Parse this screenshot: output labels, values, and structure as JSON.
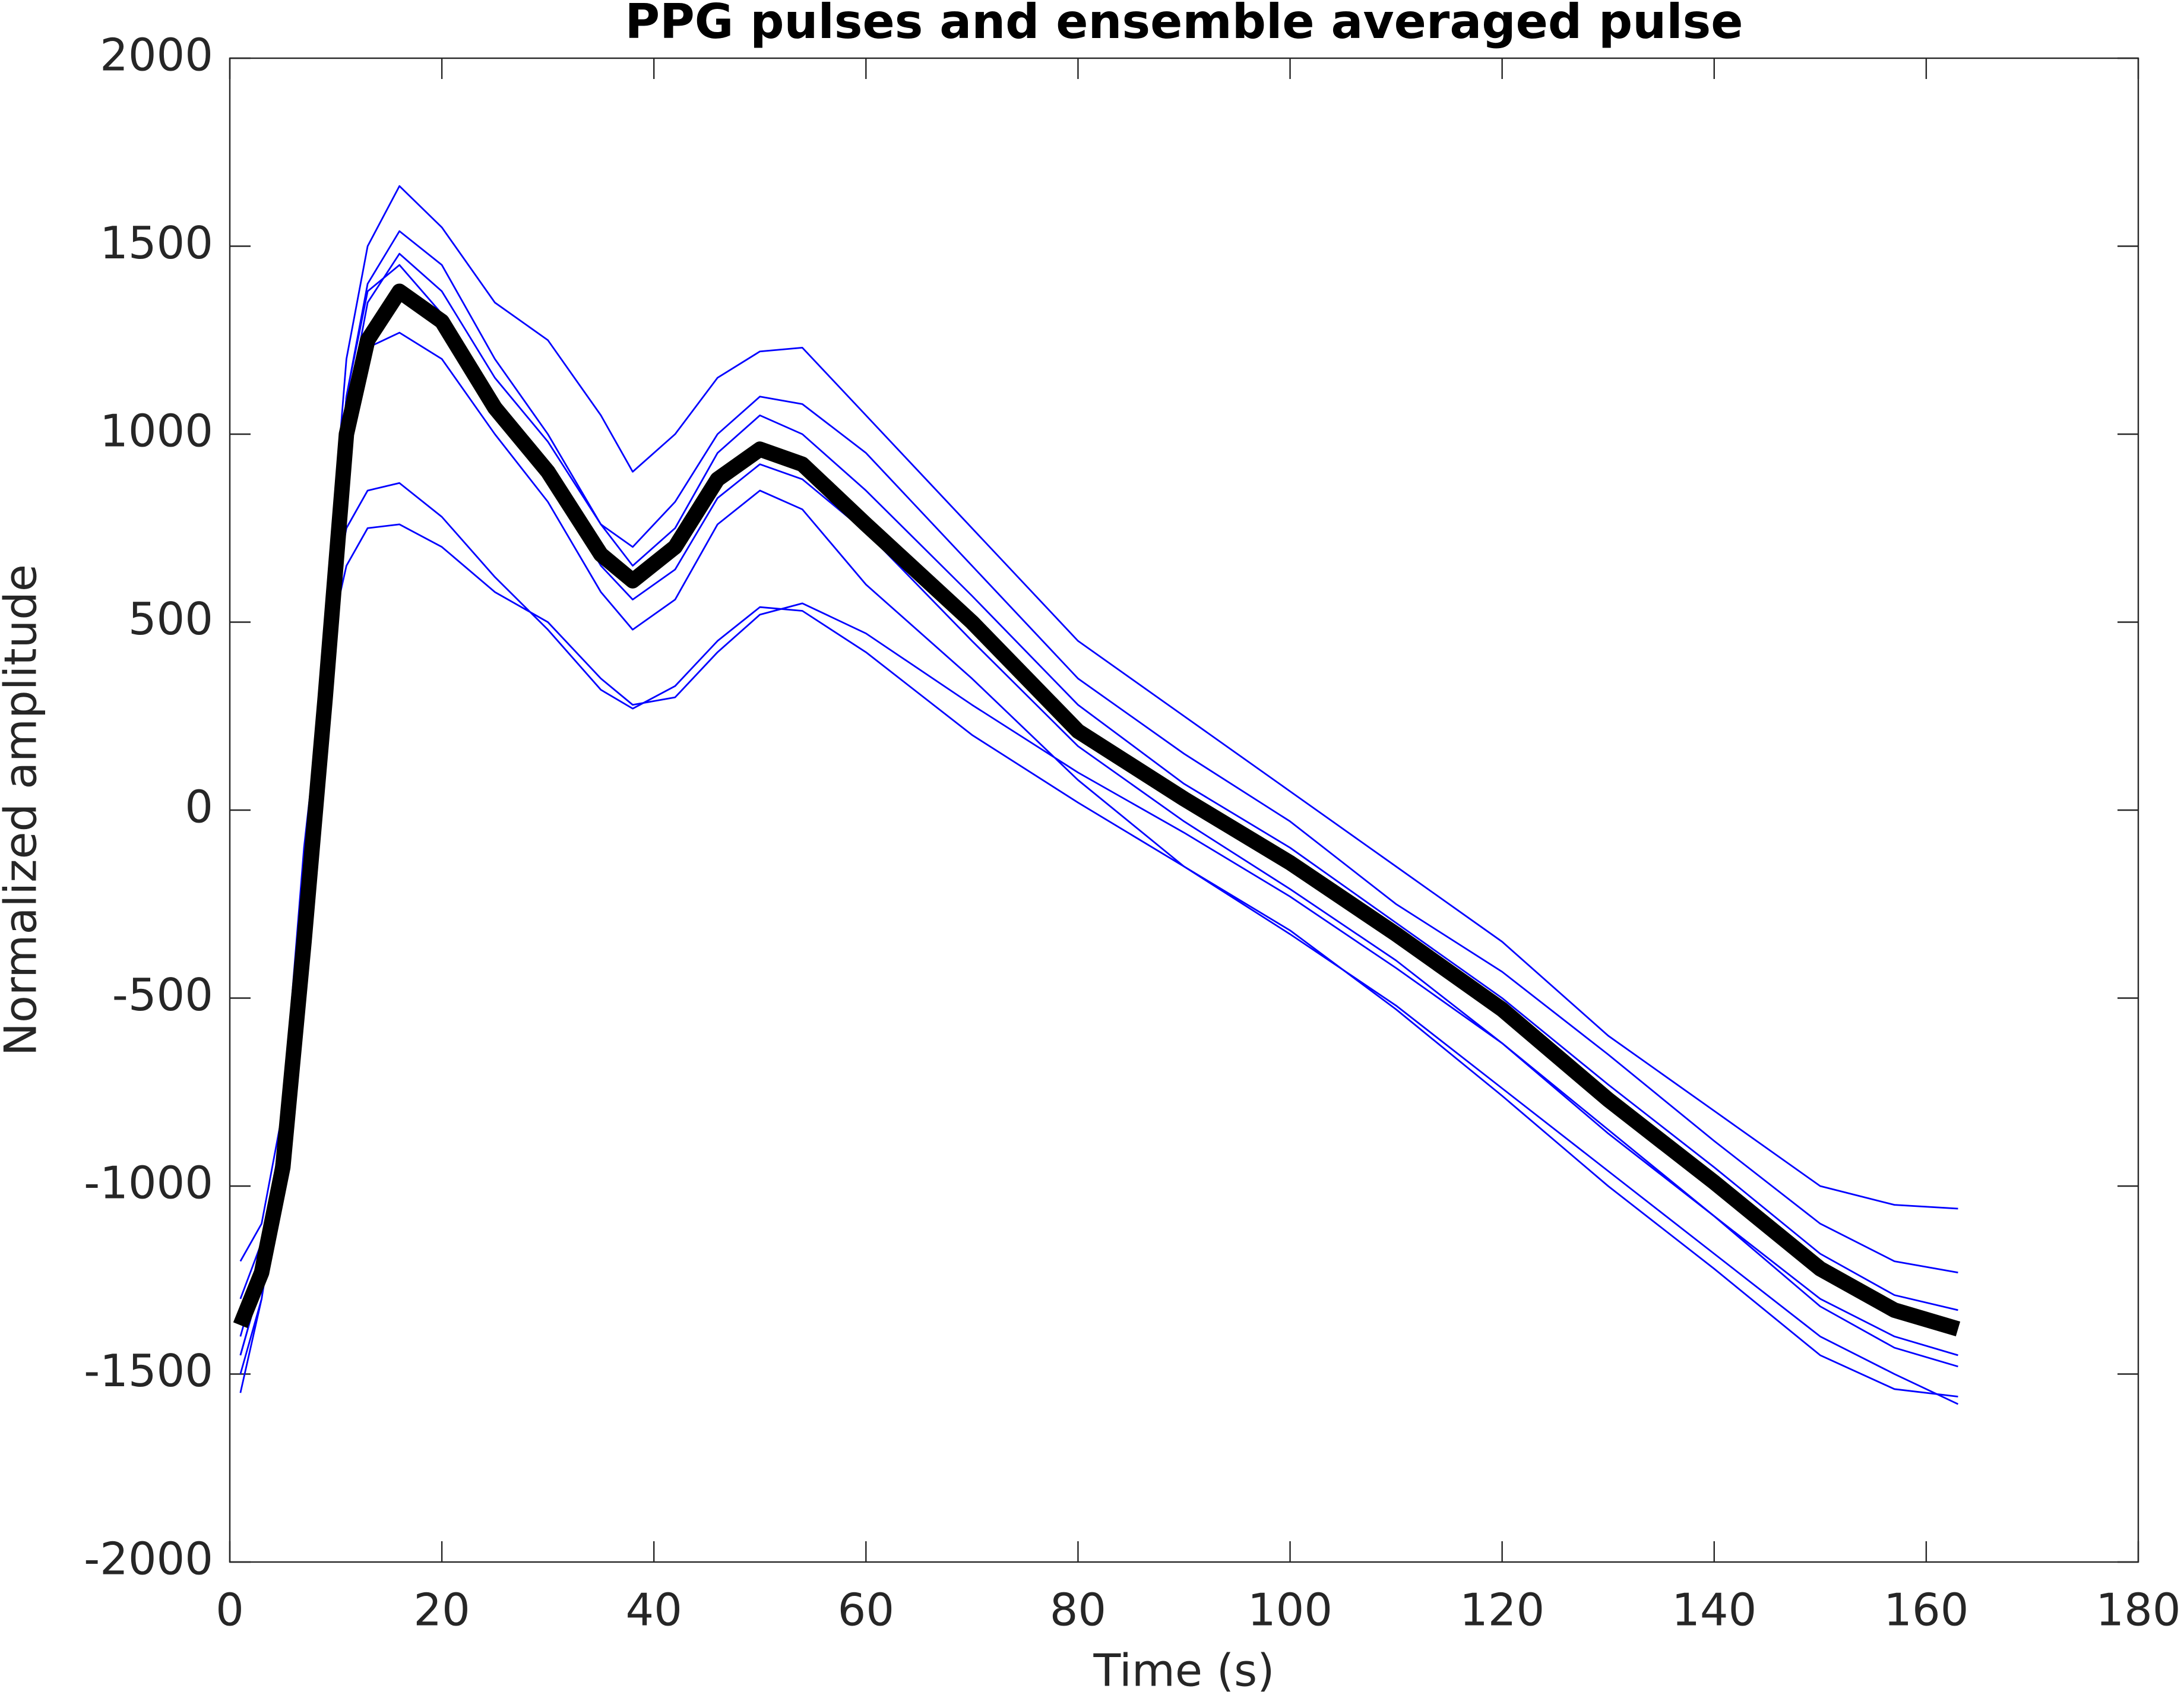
{
  "chart_data": {
    "type": "line",
    "title": "PPG pulses and ensemble averaged pulse",
    "xlabel": "Time (s)",
    "ylabel": "Normalized amplitude",
    "x": [
      1,
      3,
      5,
      7,
      9,
      11,
      13,
      16,
      20,
      25,
      30,
      35,
      38,
      42,
      46,
      50,
      54,
      60,
      70,
      80,
      90,
      100,
      110,
      120,
      130,
      140,
      150,
      157,
      163
    ],
    "series": [
      {
        "color": "#0000ff",
        "values": [
          -1500,
          -1300,
          -900,
          -200,
          500,
          1200,
          1500,
          1660,
          1550,
          1350,
          1250,
          1050,
          900,
          1000,
          1150,
          1220,
          1230,
          1050,
          750,
          450,
          250,
          50,
          -150,
          -350,
          -600,
          -800,
          -1000,
          -1050,
          -1060
        ]
      },
      {
        "color": "#0000ff",
        "values": [
          -1450,
          -1250,
          -800,
          -100,
          400,
          650,
          750,
          760,
          700,
          580,
          500,
          350,
          280,
          300,
          420,
          520,
          550,
          470,
          280,
          100,
          -60,
          -230,
          -420,
          -620,
          -850,
          -1080,
          -1320,
          -1430,
          -1480
        ]
      },
      {
        "color": "#0000ff",
        "values": [
          -1450,
          -1250,
          -850,
          -150,
          450,
          750,
          850,
          870,
          780,
          620,
          480,
          320,
          270,
          330,
          450,
          540,
          530,
          420,
          200,
          20,
          -150,
          -320,
          -530,
          -760,
          -1000,
          -1220,
          -1450,
          -1540,
          -1560
        ]
      },
      {
        "color": "#0000ff",
        "values": [
          -1400,
          -1200,
          -850,
          -250,
          400,
          1050,
          1350,
          1480,
          1380,
          1150,
          980,
          760,
          650,
          750,
          950,
          1050,
          1000,
          850,
          570,
          280,
          70,
          -100,
          -300,
          -500,
          -730,
          -950,
          -1180,
          -1290,
          -1330
        ]
      },
      {
        "color": "#0000ff",
        "values": [
          -1550,
          -1300,
          -950,
          -300,
          350,
          1000,
          1230,
          1270,
          1200,
          1000,
          820,
          580,
          480,
          560,
          760,
          850,
          800,
          600,
          350,
          80,
          -150,
          -330,
          -520,
          -740,
          -960,
          -1180,
          -1400,
          -1500,
          -1580
        ]
      },
      {
        "color": "#0000ff",
        "values": [
          -1200,
          -1100,
          -800,
          -200,
          450,
          1100,
          1400,
          1540,
          1450,
          1200,
          1000,
          760,
          700,
          820,
          1000,
          1100,
          1080,
          950,
          650,
          350,
          150,
          -30,
          -250,
          -430,
          -650,
          -880,
          -1100,
          -1200,
          -1230
        ]
      },
      {
        "color": "#0000ff",
        "values": [
          -1300,
          -1150,
          -850,
          -250,
          400,
          1100,
          1380,
          1450,
          1320,
          1080,
          890,
          650,
          560,
          640,
          830,
          920,
          880,
          740,
          450,
          170,
          -30,
          -210,
          -400,
          -620,
          -860,
          -1080,
          -1300,
          -1400,
          -1450
        ]
      },
      {
        "color": "#000000",
        "values": [
          -1370,
          -1230,
          -950,
          -350,
          300,
          1000,
          1250,
          1380,
          1300,
          1070,
          900,
          680,
          610,
          700,
          880,
          960,
          920,
          760,
          500,
          210,
          30,
          -140,
          -330,
          -530,
          -770,
          -990,
          -1220,
          -1330,
          -1380
        ]
      }
    ],
    "xlim": [
      0,
      180
    ],
    "xticks": [
      0,
      20,
      40,
      60,
      80,
      100,
      120,
      140,
      160,
      180
    ],
    "ylim": [
      -2000,
      2000
    ],
    "yticks": [
      -2000,
      -1500,
      -1000,
      -500,
      0,
      500,
      1000,
      1500,
      2000
    ]
  }
}
